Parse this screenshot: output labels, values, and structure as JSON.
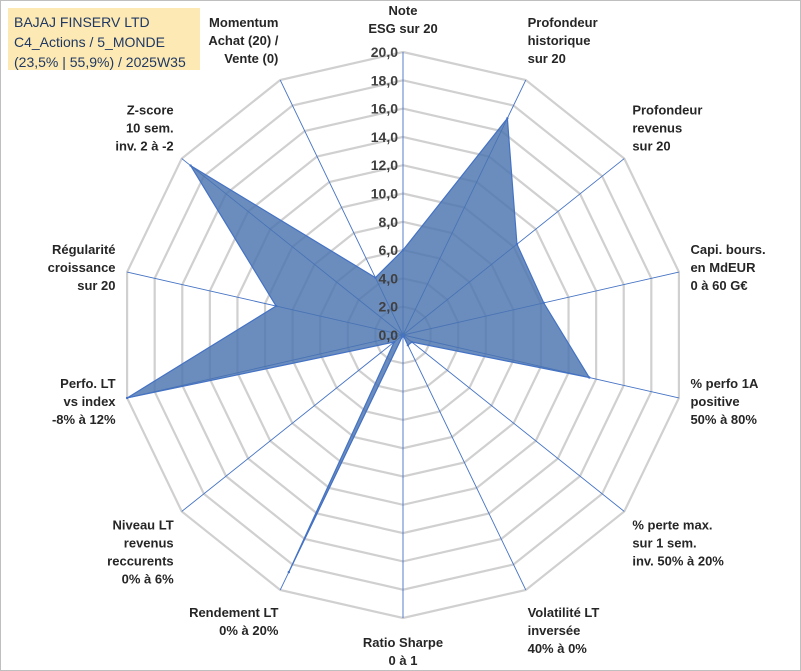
{
  "title_box": {
    "line1": "BAJAJ FINSERV LTD",
    "line2": "C4_Actions / 5_MONDE",
    "line3": "(23,5% | 55,9%) / 2025W35"
  },
  "colors": {
    "grid": "#d0d0d0",
    "spoke": "#4472c4",
    "fill": "#4a74b0",
    "title_bg": "#fde9b3",
    "title_text": "#1f3864"
  },
  "chart_data": {
    "type": "radar",
    "title": "",
    "rmin": 0,
    "rmax": 20,
    "tick_step": 2,
    "tick_labels": [
      "0,0",
      "2,0",
      "4,0",
      "6,0",
      "8,0",
      "10,0",
      "12,0",
      "14,0",
      "16,0",
      "18,0",
      "20,0"
    ],
    "grid": true,
    "axes": [
      {
        "label": [
          "Note",
          "ESG sur 20"
        ]
      },
      {
        "label": [
          "Profondeur",
          "historique",
          "sur 20"
        ]
      },
      {
        "label": [
          "Profondeur",
          "revenus",
          "sur 20"
        ]
      },
      {
        "label": [
          "Capi. bours.",
          "en MdEUR",
          "0 à 60 G€"
        ]
      },
      {
        "label": [
          "% perfo 1A",
          "positive",
          "50% à 80%"
        ]
      },
      {
        "label": [
          "% perte max.",
          "sur 1 sem.",
          "inv. 50% à 20%"
        ]
      },
      {
        "label": [
          "Volatilité LT",
          "inversée",
          "40% à 0%"
        ]
      },
      {
        "label": [
          "Ratio Sharpe",
          "0 à 1"
        ]
      },
      {
        "label": [
          "Rendement LT",
          "0% à 20%"
        ]
      },
      {
        "label": [
          "Niveau LT",
          "revenus",
          "reccurents",
          "0% à 6%"
        ]
      },
      {
        "label": [
          "Perfo. LT",
          "vs index",
          "-8% à 12%"
        ]
      },
      {
        "label": [
          "Régularité",
          "croissance",
          "sur 20"
        ]
      },
      {
        "label": [
          "Z-score",
          "10 sem.",
          "inv. 2 à -2"
        ]
      },
      {
        "label": [
          "Momentum",
          "Achat (20) /",
          "Vente (0)"
        ]
      }
    ],
    "series": [
      {
        "values": [
          6.0,
          17.0,
          10.3,
          10.2,
          13.5,
          0.8,
          0.8,
          0.0,
          18.6,
          0.8,
          20.0,
          9.2,
          19.2,
          4.5
        ]
      }
    ]
  }
}
